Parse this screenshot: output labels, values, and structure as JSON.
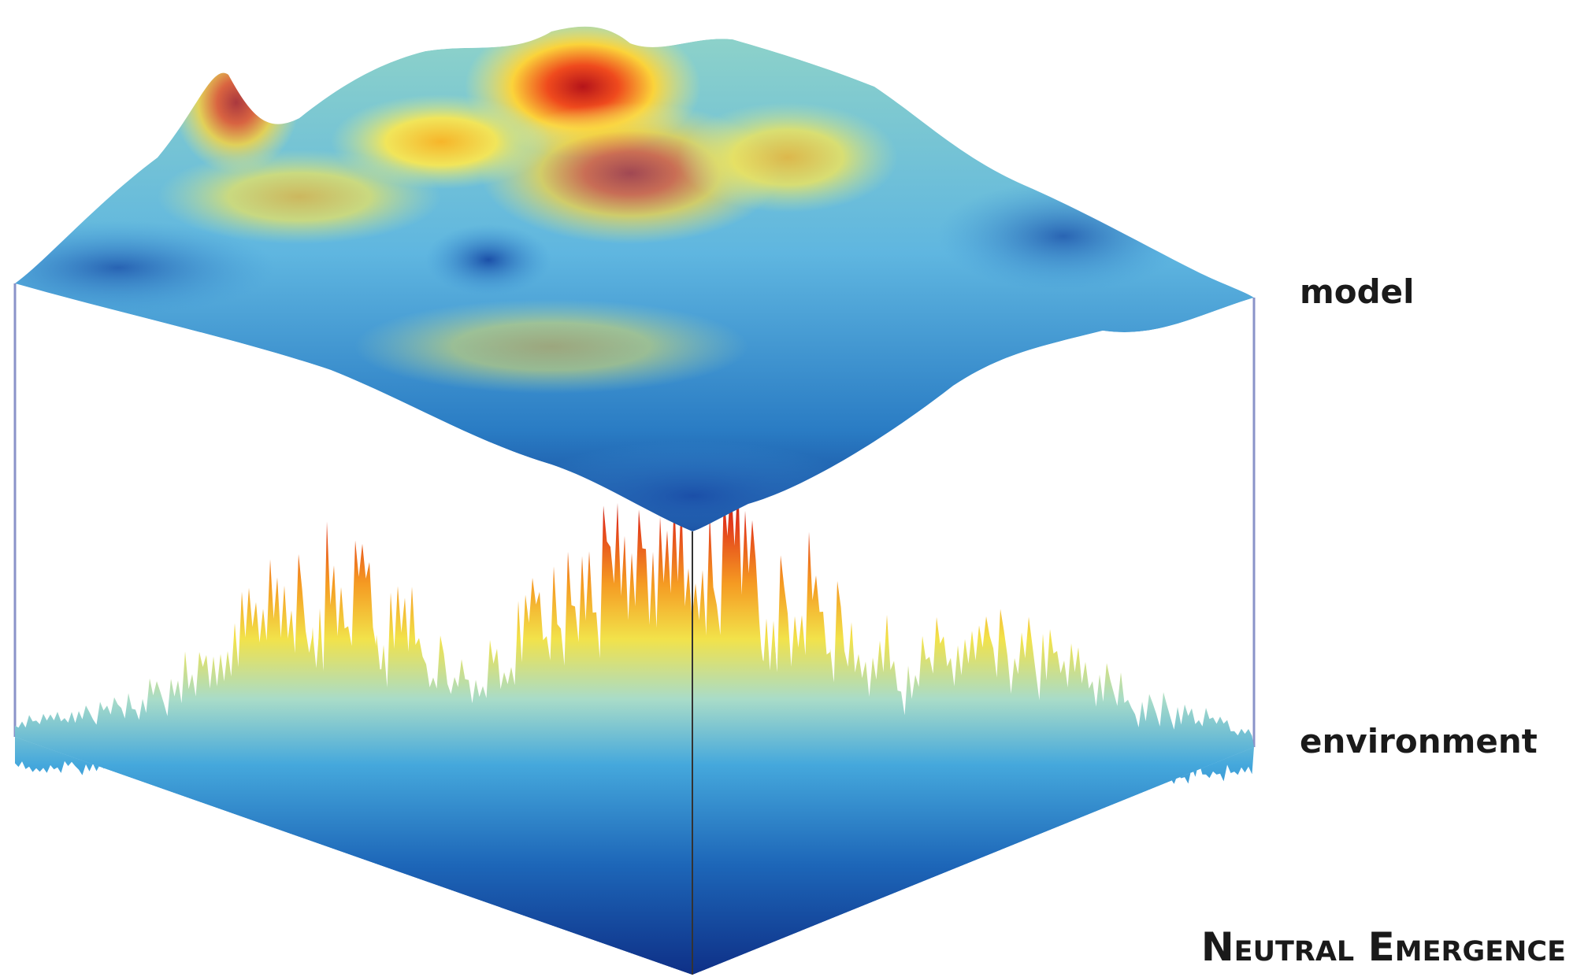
{
  "labels": {
    "model": "model",
    "environment": "environment"
  },
  "title": "Neutral Emergence"
}
